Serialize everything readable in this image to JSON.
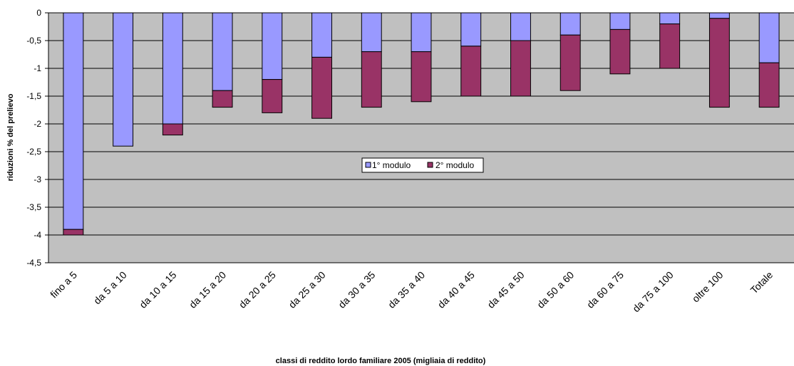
{
  "chart_data": {
    "type": "bar",
    "stacked": true,
    "categories": [
      "fino a 5",
      "da 5 a 10",
      "da 10 a 15",
      "da 15 a 20",
      "da 20 a 25",
      "da 25 a 30",
      "da 30 a 35",
      "da 35 a 40",
      "da 40 a 45",
      "da 45 a 50",
      "da 50 a 60",
      "da 60 a 75",
      "da 75 a 100",
      "oltre 100",
      "Totale"
    ],
    "series": [
      {
        "name": "1° modulo",
        "color": "#9999ff",
        "values": [
          -3.9,
          -2.4,
          -2.0,
          -1.4,
          -1.2,
          -0.8,
          -0.7,
          -0.7,
          -0.6,
          -0.5,
          -0.4,
          -0.3,
          -0.2,
          -0.1,
          -0.9
        ]
      },
      {
        "name": "2° modulo",
        "color": "#993366",
        "values": [
          -0.1,
          0.0,
          -0.2,
          -0.3,
          -0.6,
          -1.1,
          -1.0,
          -0.9,
          -0.9,
          -1.0,
          -1.0,
          -0.8,
          -0.8,
          -1.6,
          -0.8
        ]
      }
    ],
    "xlabel": "classi di reddito lordo familiare 2005 (migliaia di reddito)",
    "ylabel": "riduzioni % del prelievo",
    "ylim": [
      -4.5,
      0
    ],
    "yticks": [
      0,
      -0.5,
      -1,
      -1.5,
      -2,
      -2.5,
      -3,
      -3.5,
      -4,
      -4.5
    ],
    "ytick_labels": [
      "0",
      "-0,5",
      "-1",
      "-1,5",
      "-2",
      "-2,5",
      "-3",
      "-3,5",
      "-4",
      "-4,5"
    ],
    "grid": true,
    "plot_background": "#c0c0c0",
    "legend_position": "center"
  }
}
